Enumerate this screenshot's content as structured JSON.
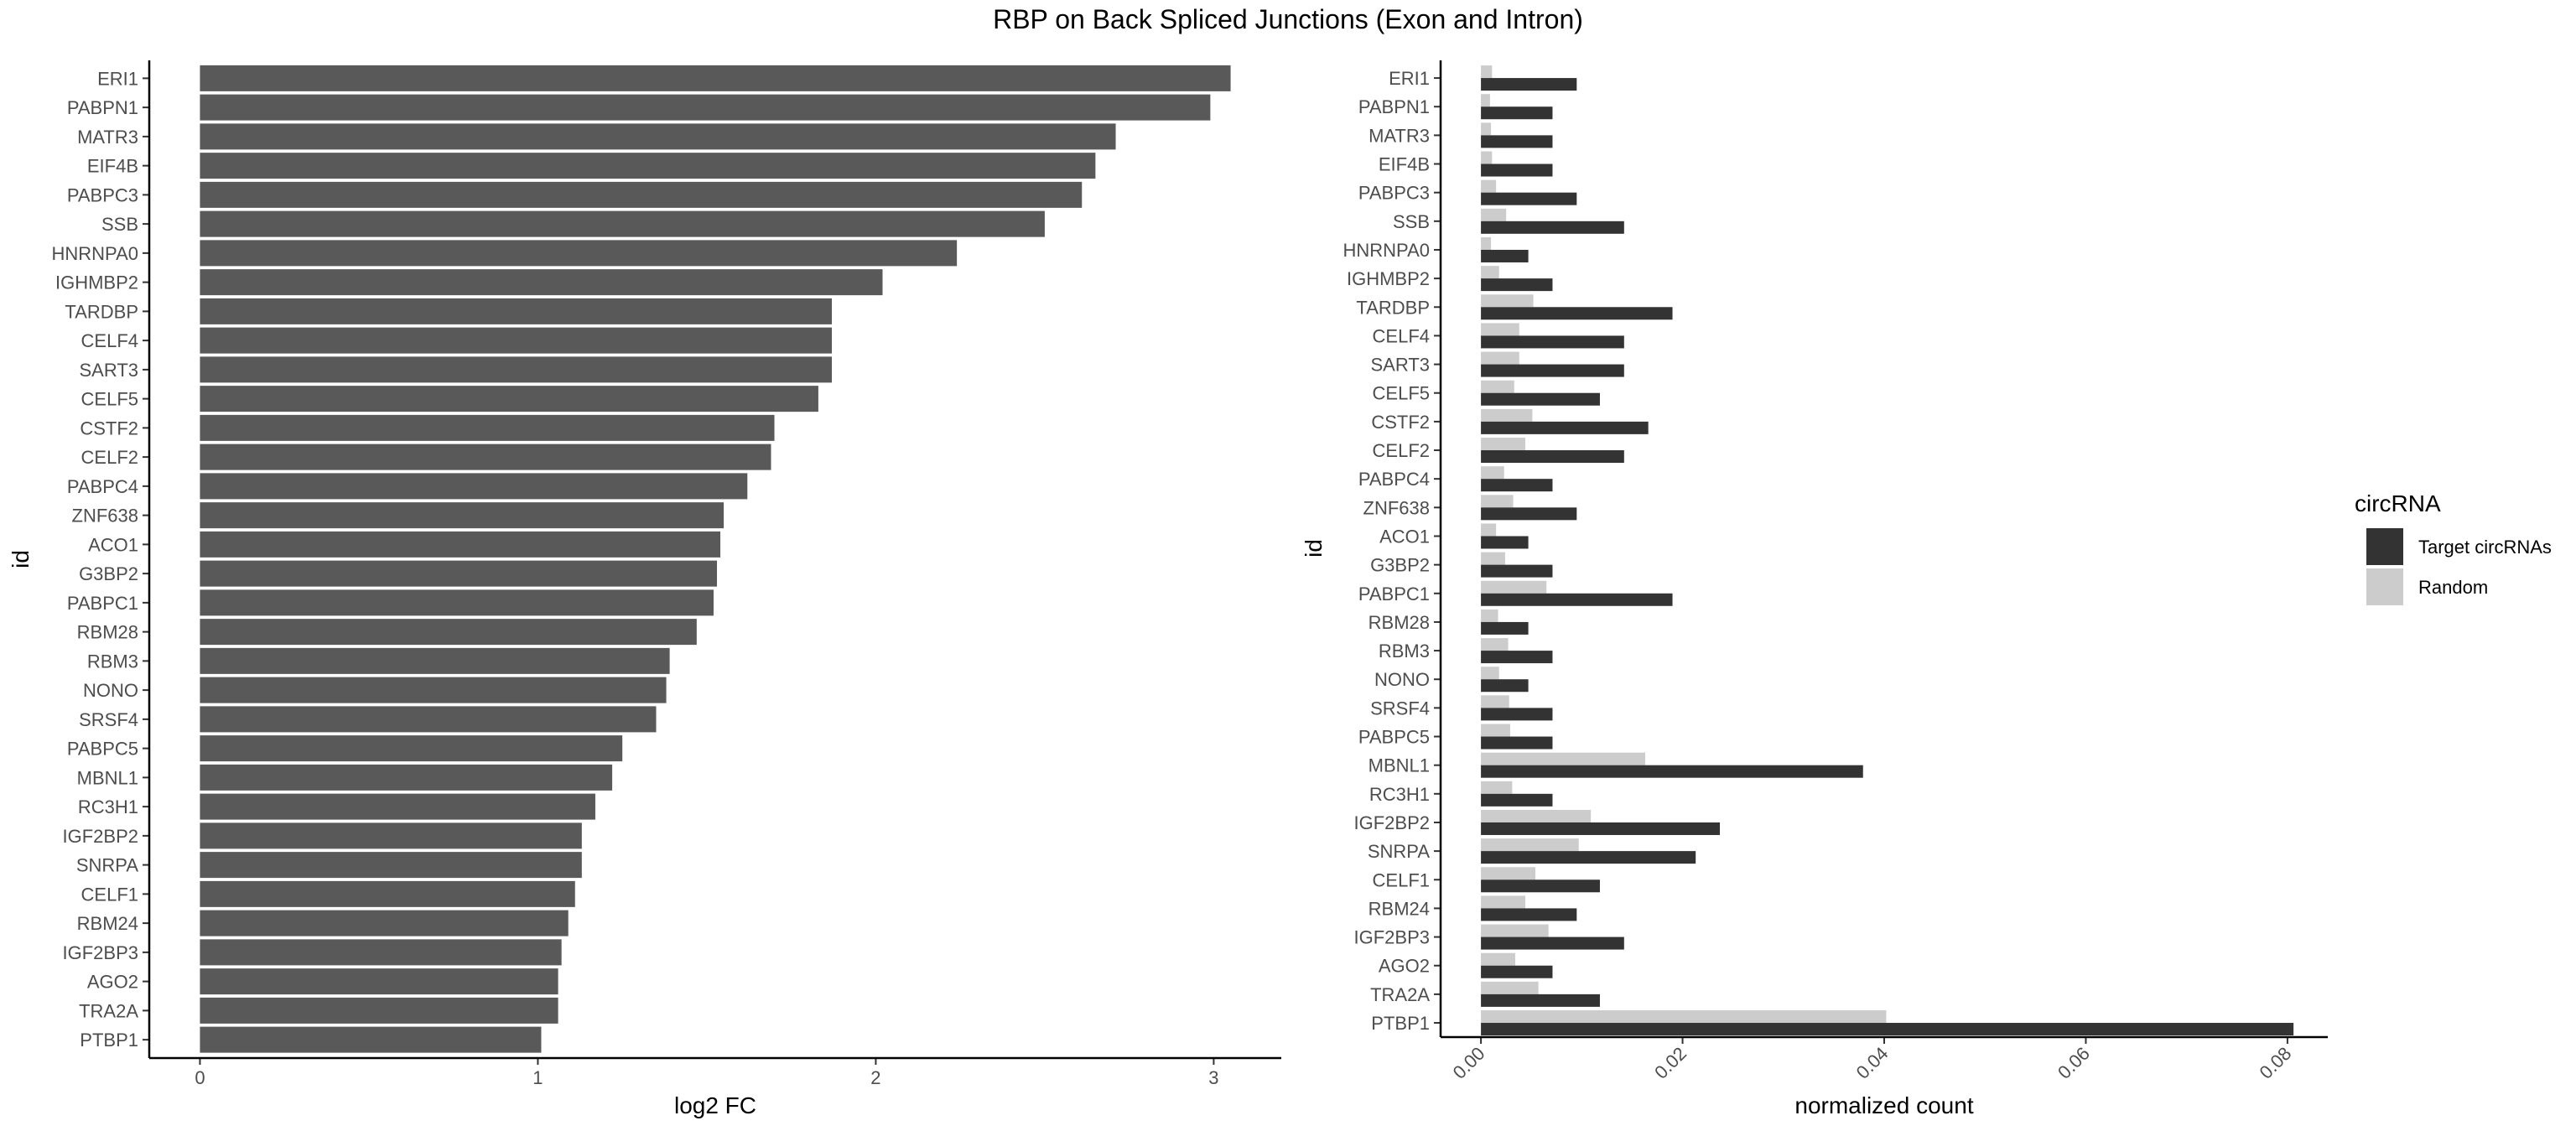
{
  "title": "RBP on Back Spliced Junctions (Exon and Intron)",
  "colors": {
    "left_bar": "#595959",
    "target": "#333333",
    "random": "#cccccc",
    "axis": "#000000",
    "tick_text": "#4d4d4d"
  },
  "chart_data": [
    {
      "type": "bar",
      "orientation": "horizontal",
      "xlabel": "log2 FC",
      "ylabel": "id",
      "xlim": [
        -0.15,
        3.2
      ],
      "xticks": [
        0,
        1,
        2,
        3
      ],
      "categories": [
        "ERI1",
        "PABPN1",
        "MATR3",
        "EIF4B",
        "PABPC3",
        "SSB",
        "HNRNPA0",
        "IGHMBP2",
        "TARDBP",
        "CELF4",
        "SART3",
        "CELF5",
        "CSTF2",
        "CELF2",
        "PABPC4",
        "ZNF638",
        "ACO1",
        "G3BP2",
        "PABPC1",
        "RBM28",
        "RBM3",
        "NONO",
        "SRSF4",
        "PABPC5",
        "MBNL1",
        "RC3H1",
        "IGF2BP2",
        "SNRPA",
        "CELF1",
        "RBM24",
        "IGF2BP3",
        "AGO2",
        "TRA2A",
        "PTBP1"
      ],
      "values": [
        3.05,
        2.99,
        2.71,
        2.65,
        2.61,
        2.5,
        2.24,
        2.02,
        1.87,
        1.87,
        1.87,
        1.83,
        1.7,
        1.69,
        1.62,
        1.55,
        1.54,
        1.53,
        1.52,
        1.47,
        1.39,
        1.38,
        1.35,
        1.25,
        1.22,
        1.17,
        1.13,
        1.13,
        1.11,
        1.09,
        1.07,
        1.06,
        1.06,
        1.01
      ],
      "grid": false
    },
    {
      "type": "bar",
      "orientation": "horizontal",
      "grouped": true,
      "xlabel": "normalized count",
      "ylabel": "id",
      "xlim": [
        -0.004,
        0.084
      ],
      "xticks": [
        0.0,
        0.02,
        0.04,
        0.06,
        0.08
      ],
      "xtick_labels": [
        "0.00",
        "0.02",
        "0.04",
        "0.06",
        "0.08"
      ],
      "categories": [
        "ERI1",
        "PABPN1",
        "MATR3",
        "EIF4B",
        "PABPC3",
        "SSB",
        "HNRNPA0",
        "IGHMBP2",
        "TARDBP",
        "CELF4",
        "SART3",
        "CELF5",
        "CSTF2",
        "CELF2",
        "PABPC4",
        "ZNF638",
        "ACO1",
        "G3BP2",
        "PABPC1",
        "RBM28",
        "RBM3",
        "NONO",
        "SRSF4",
        "PABPC5",
        "MBNL1",
        "RC3H1",
        "IGF2BP2",
        "SNRPA",
        "CELF1",
        "RBM24",
        "IGF2BP3",
        "AGO2",
        "TRA2A",
        "PTBP1"
      ],
      "series": [
        {
          "name": "Target circRNAs",
          "values": [
            0.0095,
            0.0071,
            0.0071,
            0.0071,
            0.0095,
            0.0142,
            0.0047,
            0.0071,
            0.019,
            0.0142,
            0.0142,
            0.0118,
            0.0166,
            0.0142,
            0.0071,
            0.0095,
            0.0047,
            0.0071,
            0.019,
            0.0047,
            0.0071,
            0.0047,
            0.0071,
            0.0071,
            0.0379,
            0.0071,
            0.0237,
            0.0213,
            0.0118,
            0.0095,
            0.0142,
            0.0071,
            0.0118,
            0.0806
          ]
        },
        {
          "name": "Random",
          "values": [
            0.0011,
            0.0009,
            0.001,
            0.0011,
            0.0015,
            0.0025,
            0.001,
            0.0018,
            0.0052,
            0.0038,
            0.0038,
            0.0033,
            0.0051,
            0.0044,
            0.0023,
            0.0032,
            0.0015,
            0.0024,
            0.0065,
            0.0017,
            0.0027,
            0.0018,
            0.0028,
            0.0029,
            0.0163,
            0.0031,
            0.0109,
            0.0097,
            0.0054,
            0.0044,
            0.0067,
            0.0034,
            0.0057,
            0.0402
          ]
        }
      ],
      "legend": {
        "title": "circRNA",
        "entries": [
          "Target circRNAs",
          "Random"
        ],
        "placement": "right"
      },
      "grid": false
    }
  ]
}
